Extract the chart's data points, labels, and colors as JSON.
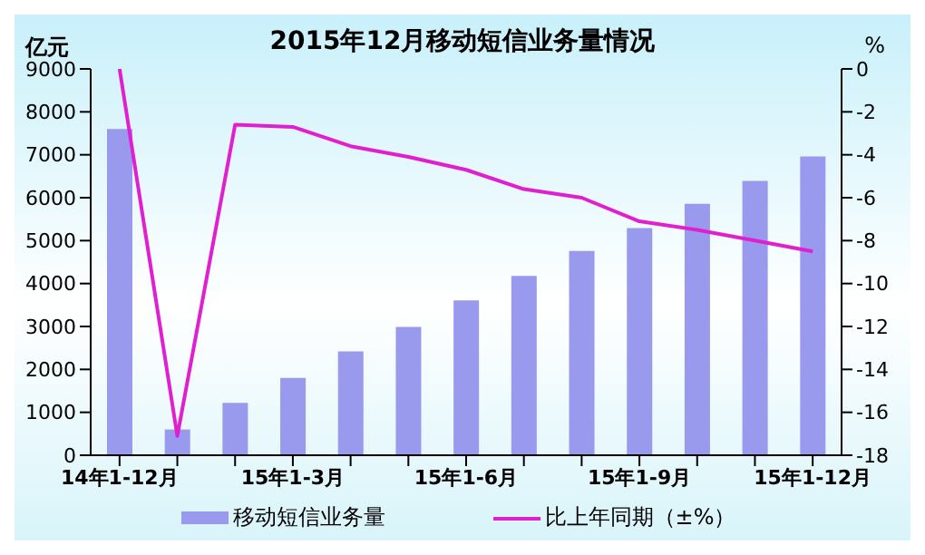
{
  "chart_data": {
    "type": "bar",
    "title": "2015年12月移动短信业务量情况",
    "ylabel": "亿元",
    "y2label": "%",
    "categories": [
      "14年1-12月",
      null,
      null,
      "15年1-3月",
      null,
      null,
      "15年1-6月",
      null,
      null,
      "15年1-9月",
      null,
      null,
      "15年1-12月"
    ],
    "series": [
      {
        "name": "移动短信业务量",
        "color": "#9999ee",
        "values": [
          7600,
          600,
          1220,
          1800,
          2420,
          2990,
          3610,
          4180,
          4760,
          5290,
          5860,
          6390,
          6960
        ]
      },
      {
        "name": "比上年同期（±%）",
        "type": "line",
        "axis": "y2",
        "color": "#e020d0",
        "values": [
          0,
          -17.1,
          -2.6,
          -2.7,
          -3.6,
          -4.1,
          -4.7,
          -5.6,
          -6.0,
          -7.1,
          -7.5,
          -8.0,
          -8.5
        ]
      }
    ],
    "ylim": [
      0,
      9000
    ],
    "yticks": [
      0,
      1000,
      2000,
      3000,
      4000,
      5000,
      6000,
      7000,
      8000,
      9000
    ],
    "y2lim": [
      -18,
      0
    ],
    "y2ticks": [
      -18,
      -16,
      -14,
      -12,
      -10,
      -8,
      -6,
      -4,
      -2,
      0
    ],
    "grid": false,
    "legend": "bottom",
    "marker": "none"
  }
}
